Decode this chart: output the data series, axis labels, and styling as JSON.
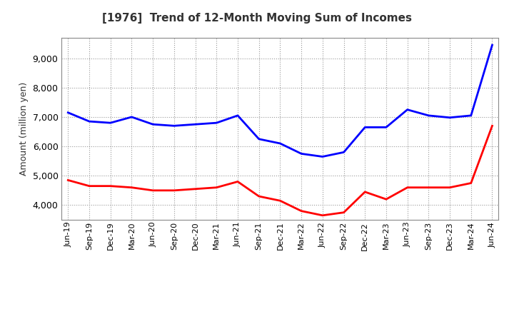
{
  "title": "[1976]  Trend of 12-Month Moving Sum of Incomes",
  "ylabel": "Amount (million yen)",
  "x_labels": [
    "Jun-19",
    "Sep-19",
    "Dec-19",
    "Mar-20",
    "Jun-20",
    "Sep-20",
    "Dec-20",
    "Mar-21",
    "Jun-21",
    "Sep-21",
    "Dec-21",
    "Mar-22",
    "Jun-22",
    "Sep-22",
    "Dec-22",
    "Mar-23",
    "Jun-23",
    "Sep-23",
    "Dec-23",
    "Mar-24",
    "Jun-24"
  ],
  "ordinary_income": [
    7150,
    6850,
    6800,
    7000,
    6750,
    6700,
    6750,
    6800,
    7050,
    6250,
    6100,
    5750,
    5650,
    5800,
    6650,
    6650,
    7250,
    7050,
    6980,
    7050,
    9450
  ],
  "net_income": [
    4850,
    4650,
    4650,
    4600,
    4500,
    4500,
    4550,
    4600,
    4800,
    4300,
    4150,
    3800,
    3650,
    3750,
    4450,
    4200,
    4600,
    4600,
    4600,
    4750,
    6700
  ],
  "ordinary_color": "#0000ff",
  "net_color": "#ff0000",
  "background_color": "#ffffff",
  "grid_color": "#999999",
  "ylim_min": 3500,
  "ylim_max": 9700,
  "yticks": [
    4000,
    5000,
    6000,
    7000,
    8000,
    9000
  ],
  "title_color": "#333333",
  "tick_color": "#333333"
}
